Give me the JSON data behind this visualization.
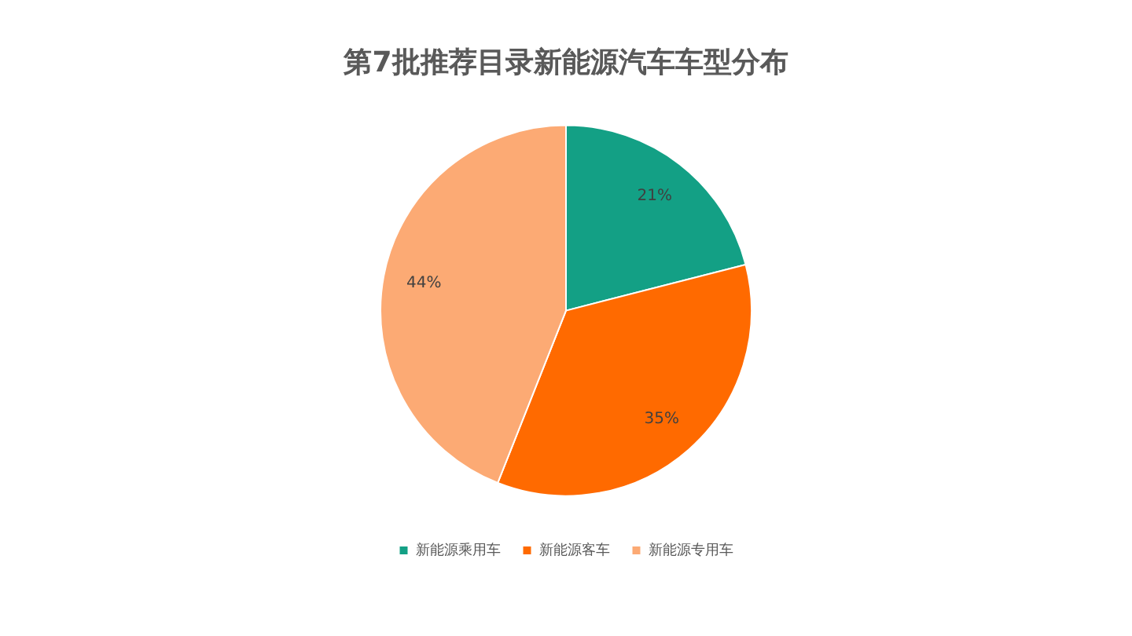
{
  "chart_data": {
    "type": "pie",
    "title": "第7批推荐目录新能源汽车车型分布",
    "categories": [
      "新能源乘用车",
      "新能源客车",
      "新能源专用车"
    ],
    "values": [
      21,
      35,
      44
    ],
    "colors": [
      "#13a085",
      "#ff6a00",
      "#fcaa74"
    ],
    "value_labels": [
      "21%",
      "35%",
      "44%"
    ],
    "legend": "bottom"
  }
}
